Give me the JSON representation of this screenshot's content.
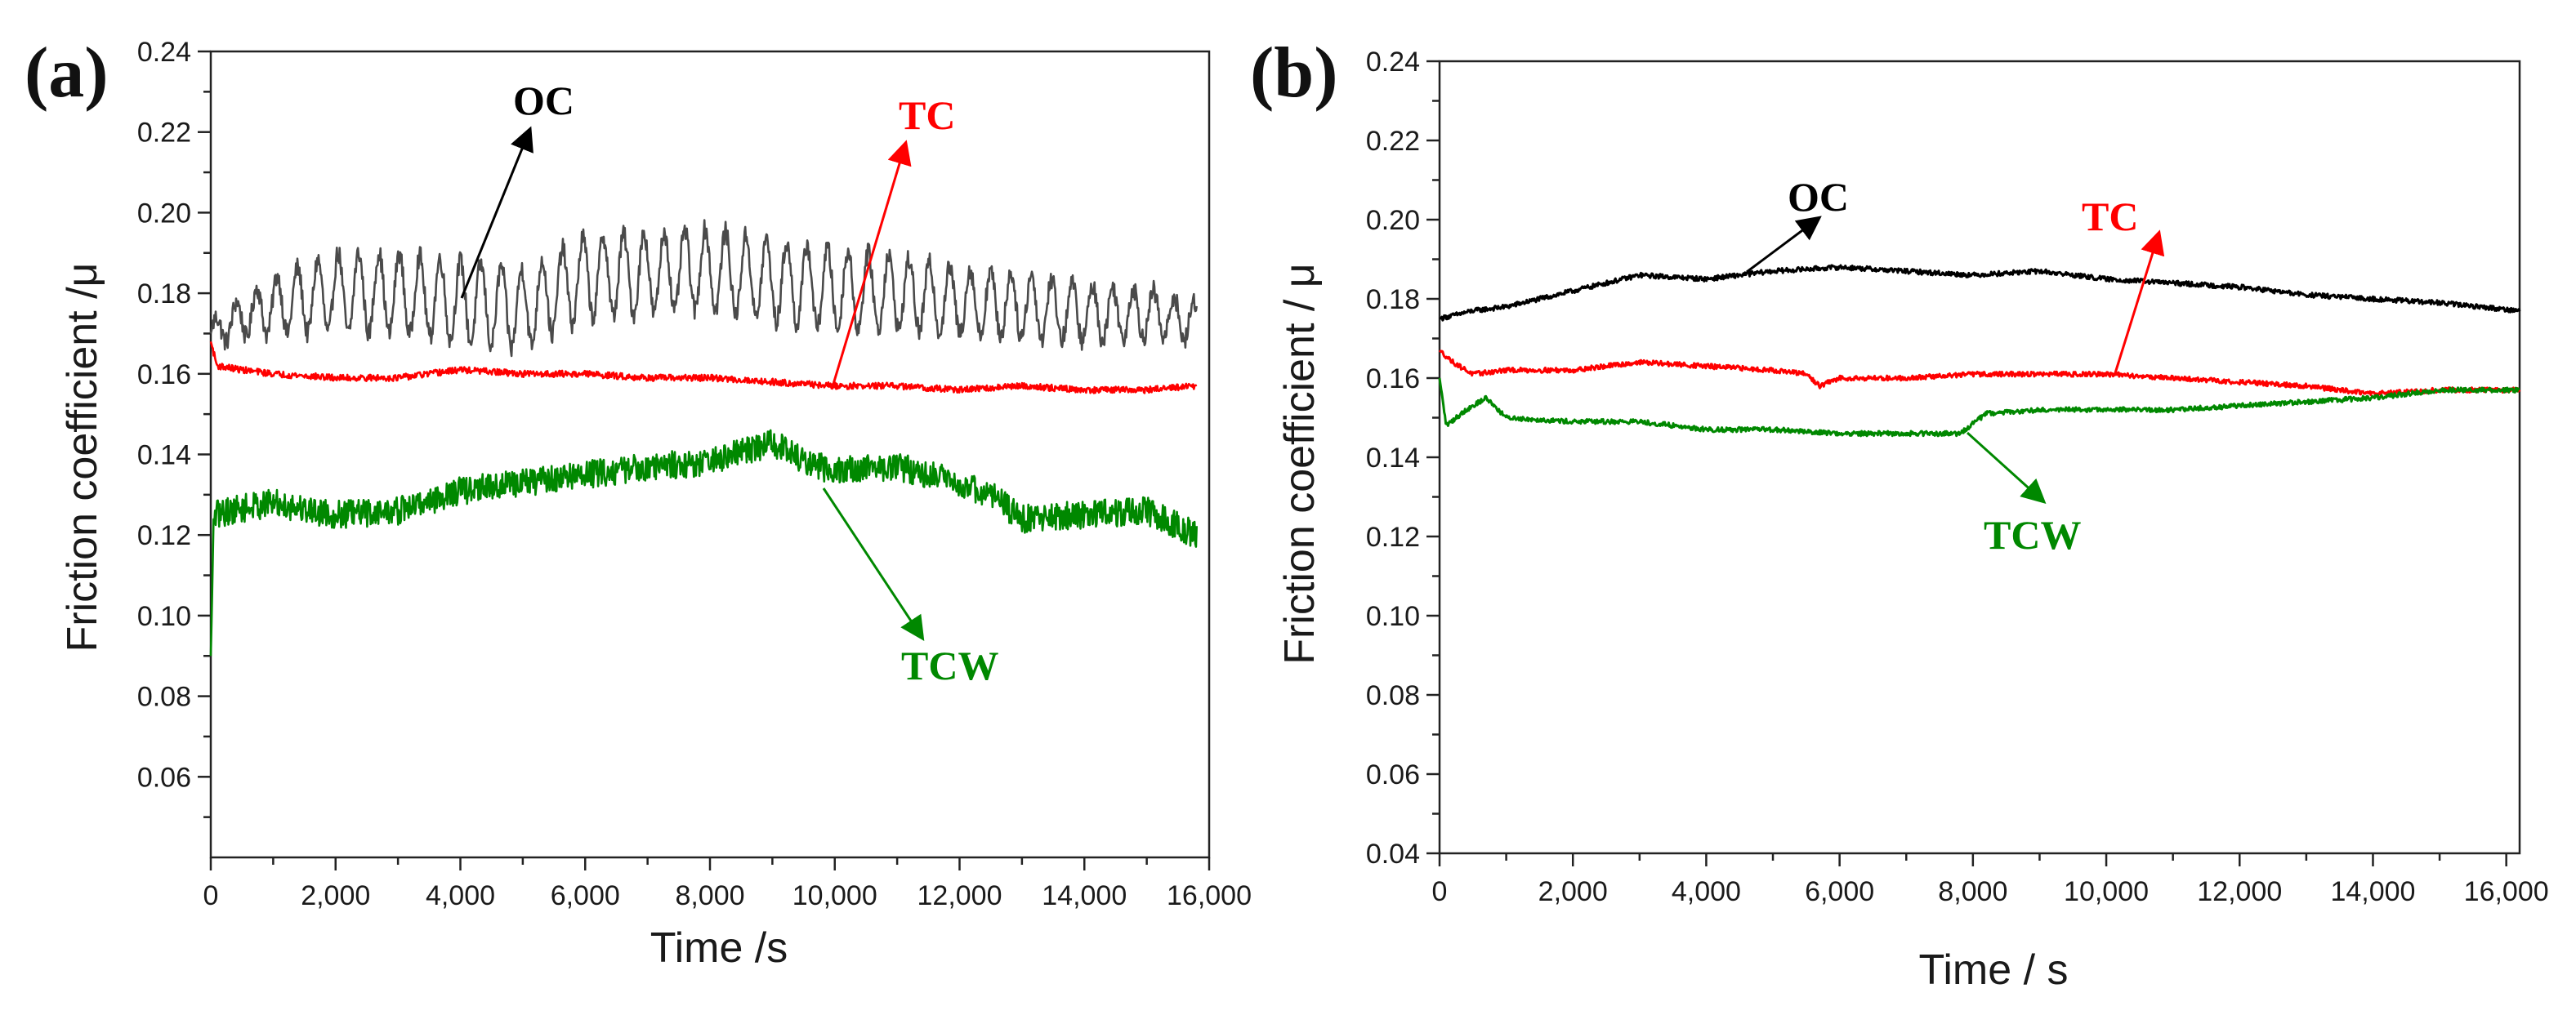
{
  "chart_data": [
    {
      "panel": "(a)",
      "type": "line",
      "xlabel": "Time /s",
      "ylabel": "Friction coefficient  /μ",
      "xlim": [
        0,
        16000
      ],
      "ylim": [
        0.04,
        0.24
      ],
      "xticks": [
        0,
        2000,
        4000,
        6000,
        8000,
        10000,
        12000,
        14000,
        16000
      ],
      "xtick_labels": [
        "0",
        "2,000",
        "4,000",
        "6,000",
        "8,000",
        "10,000",
        "12,000",
        "14,000",
        "16,000"
      ],
      "yticks": [
        0.06,
        0.08,
        0.1,
        0.12,
        0.14,
        0.16,
        0.18,
        0.2,
        0.22,
        0.24
      ],
      "ytick_labels": [
        "0.06",
        "0.08",
        "0.10",
        "0.12",
        "0.14",
        "0.16",
        "0.18",
        "0.20",
        "0.22",
        "0.24"
      ],
      "series": [
        {
          "name": "OC",
          "color": "#4a4a4a",
          "x": [
            0,
            500,
            1000,
            2000,
            3000,
            4000,
            5000,
            6000,
            7000,
            8000,
            9000,
            10000,
            11000,
            12000,
            13000,
            14000,
            15000,
            15800
          ],
          "values": [
            0.17,
            0.174,
            0.177,
            0.18,
            0.18,
            0.178,
            0.176,
            0.184,
            0.185,
            0.186,
            0.183,
            0.181,
            0.18,
            0.178,
            0.177,
            0.175,
            0.175,
            0.173
          ],
          "oscillation_amplitude": [
            0.003,
            0.005,
            0.007,
            0.01,
            0.01,
            0.01,
            0.01,
            0.01,
            0.01,
            0.01,
            0.01,
            0.01,
            0.009,
            0.008,
            0.008,
            0.007,
            0.006,
            0.005
          ]
        },
        {
          "name": "TC",
          "color": "#ff0000",
          "x": [
            0,
            100,
            500,
            1000,
            2000,
            3000,
            4000,
            5000,
            6000,
            7000,
            8000,
            9000,
            10000,
            11000,
            12000,
            13000,
            14000,
            15000,
            15800
          ],
          "values": [
            0.168,
            0.162,
            0.161,
            0.16,
            0.159,
            0.159,
            0.161,
            0.16,
            0.16,
            0.159,
            0.159,
            0.158,
            0.157,
            0.157,
            0.156,
            0.157,
            0.156,
            0.156,
            0.157
          ]
        },
        {
          "name": "TCW",
          "color": "#008800",
          "x": [
            0,
            50,
            300,
            1000,
            2000,
            3000,
            4000,
            5000,
            6000,
            7000,
            8000,
            9000,
            9500,
            10000,
            11000,
            12000,
            12500,
            13000,
            14000,
            15000,
            15800
          ],
          "values": [
            0.09,
            0.125,
            0.126,
            0.128,
            0.125,
            0.126,
            0.131,
            0.133,
            0.135,
            0.137,
            0.138,
            0.143,
            0.138,
            0.136,
            0.137,
            0.133,
            0.13,
            0.124,
            0.125,
            0.126,
            0.12
          ]
        }
      ],
      "annotations": [
        {
          "text": "OC",
          "series": "OC"
        },
        {
          "text": "TC",
          "series": "TC"
        },
        {
          "text": "TCW",
          "series": "TCW"
        }
      ]
    },
    {
      "panel": "(b)",
      "type": "line",
      "xlabel": "Time / s",
      "ylabel": "Friction coefficient / μ",
      "xlim": [
        0,
        16200
      ],
      "ylim": [
        0.04,
        0.24
      ],
      "xticks": [
        0,
        2000,
        4000,
        6000,
        8000,
        10000,
        12000,
        14000,
        16000
      ],
      "xtick_labels": [
        "0",
        "2,000",
        "4,000",
        "6,000",
        "8,000",
        "10,000",
        "12,000",
        "14,000",
        "16,000"
      ],
      "yticks": [
        0.04,
        0.06,
        0.08,
        0.1,
        0.12,
        0.14,
        0.16,
        0.18,
        0.2,
        0.22,
        0.24
      ],
      "ytick_labels": [
        "0.04",
        "0.06",
        "0.08",
        "0.10",
        "0.12",
        "0.14",
        "0.16",
        "0.18",
        "0.20",
        "0.22",
        "0.24"
      ],
      "series": [
        {
          "name": "OC",
          "color": "#000000",
          "x": [
            0,
            500,
            1000,
            2000,
            3000,
            4000,
            5000,
            6000,
            7000,
            8000,
            9000,
            10000,
            11000,
            12000,
            13000,
            14000,
            15000,
            16200
          ],
          "values": [
            0.175,
            0.177,
            0.178,
            0.182,
            0.186,
            0.185,
            0.187,
            0.188,
            0.187,
            0.186,
            0.187,
            0.185,
            0.184,
            0.183,
            0.181,
            0.18,
            0.179,
            0.177
          ]
        },
        {
          "name": "TC",
          "color": "#ff0000",
          "x": [
            0,
            200,
            500,
            1000,
            2000,
            3000,
            4000,
            5000,
            5500,
            5700,
            6000,
            7000,
            8000,
            9000,
            10000,
            11000,
            12000,
            13000,
            14000,
            15000,
            16200
          ],
          "values": [
            0.167,
            0.164,
            0.161,
            0.162,
            0.162,
            0.164,
            0.163,
            0.162,
            0.161,
            0.158,
            0.16,
            0.16,
            0.161,
            0.161,
            0.161,
            0.16,
            0.159,
            0.158,
            0.156,
            0.157,
            0.157
          ]
        },
        {
          "name": "TCW",
          "color": "#008800",
          "x": [
            0,
            100,
            400,
            700,
            1000,
            2000,
            3000,
            4000,
            5000,
            6000,
            7000,
            7800,
            8200,
            9000,
            10000,
            11000,
            12000,
            13000,
            14000,
            15000,
            16200
          ],
          "values": [
            0.16,
            0.148,
            0.152,
            0.155,
            0.15,
            0.149,
            0.149,
            0.147,
            0.147,
            0.146,
            0.146,
            0.146,
            0.151,
            0.152,
            0.152,
            0.152,
            0.153,
            0.154,
            0.155,
            0.157,
            0.157
          ]
        }
      ],
      "annotations": [
        {
          "text": "OC",
          "series": "OC"
        },
        {
          "text": "TC",
          "series": "TC"
        },
        {
          "text": "TCW",
          "series": "TCW"
        }
      ]
    }
  ]
}
